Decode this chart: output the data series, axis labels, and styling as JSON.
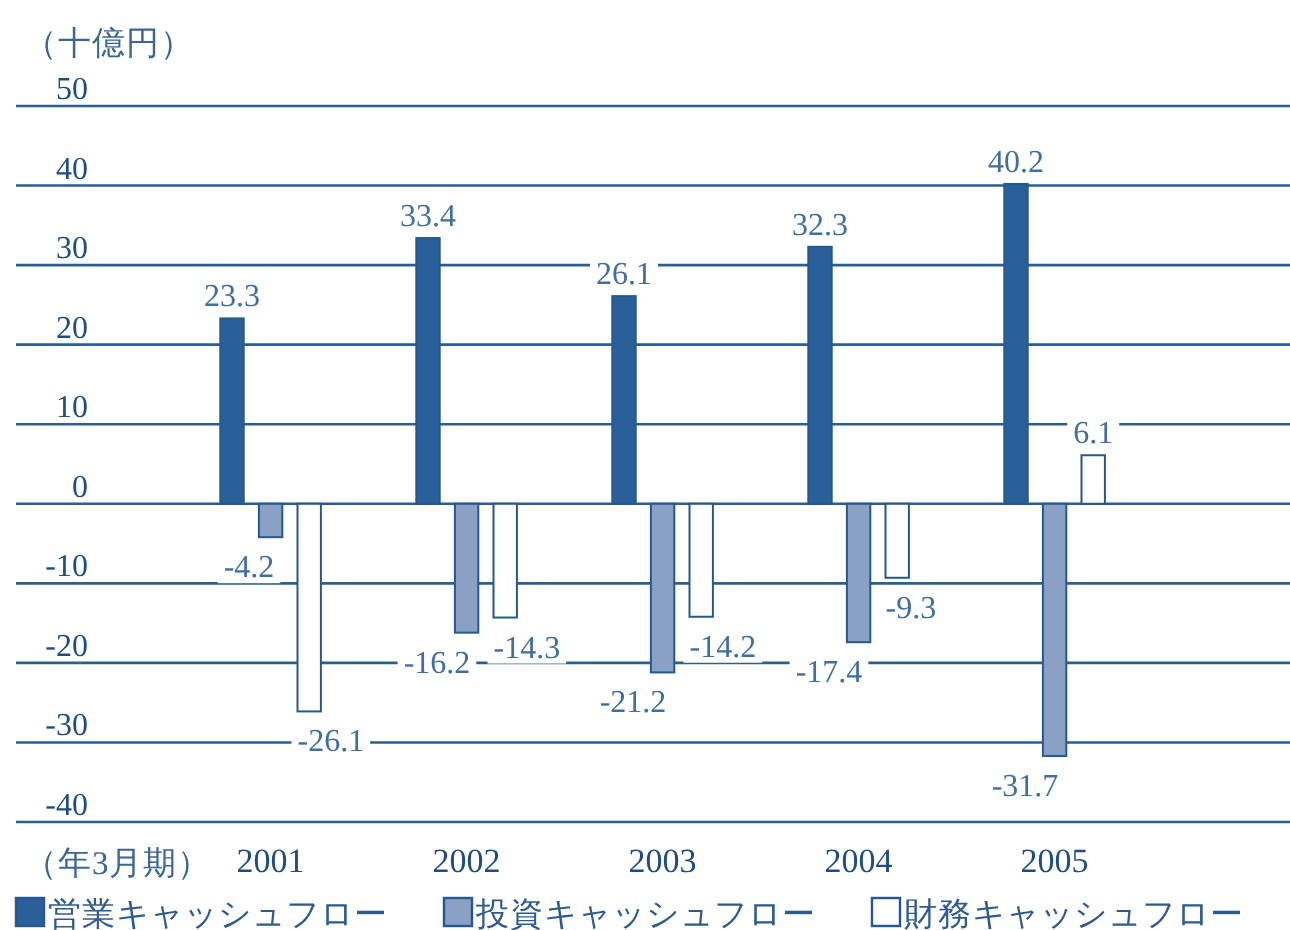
{
  "chart_data": {
    "type": "bar",
    "ylabel": "（十億円）",
    "xlabel": "（年3月期）",
    "categories": [
      "2001",
      "2002",
      "2003",
      "2004",
      "2005"
    ],
    "series": [
      {
        "name": "営業キャッシュフロー",
        "color": "#2a6099",
        "values": [
          23.3,
          33.4,
          26.1,
          32.3,
          40.2
        ]
      },
      {
        "name": "投資キャッシュフロー",
        "color": "#8aa0c4",
        "values": [
          -4.2,
          -16.2,
          -21.2,
          -17.4,
          -31.7
        ]
      },
      {
        "name": "財務キャッシュフロー",
        "color": "#ffffff",
        "values": [
          -26.1,
          -14.3,
          -14.2,
          -9.3,
          6.1
        ]
      }
    ],
    "ylim": [
      -40,
      50
    ],
    "yticks": [
      -40,
      -30,
      -20,
      -10,
      0,
      10,
      20,
      30,
      40,
      50
    ],
    "grid": "y",
    "legend": "bottom",
    "data_labels": true
  }
}
